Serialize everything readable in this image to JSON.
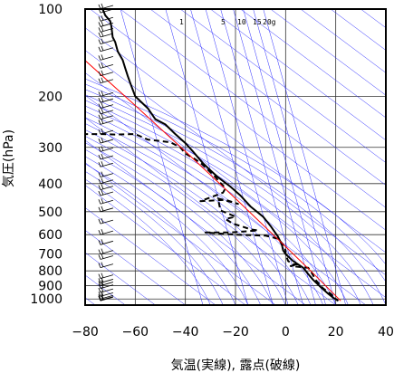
{
  "chart_data": {
    "type": "line",
    "title": "",
    "xlabel": "気温(実線), 露点(破線)",
    "ylabel": "気圧(hPa)",
    "x_ticks": [
      -80,
      -60,
      -40,
      -20,
      0,
      20,
      40
    ],
    "y_ticks": [
      100,
      200,
      300,
      400,
      500,
      600,
      700,
      800,
      900,
      1000
    ],
    "xlim": [
      -80,
      40
    ],
    "ylim": [
      1050,
      100
    ],
    "y_scale": "log",
    "mixing_ratio_labels": [
      "1",
      "5",
      "10",
      "15",
      "20g"
    ],
    "series": [
      {
        "style": "solid",
        "color": "#000000",
        "points": [
          [
            -73,
            100
          ],
          [
            -72,
            105
          ],
          [
            -70,
            110
          ],
          [
            -69.5,
            115
          ],
          [
            -69,
            125
          ],
          [
            -68,
            130
          ],
          [
            -67,
            140
          ],
          [
            -65,
            150
          ],
          [
            -64,
            160
          ],
          [
            -63,
            170
          ],
          [
            -62,
            180
          ],
          [
            -60,
            200
          ],
          [
            -55,
            220
          ],
          [
            -52,
            240
          ],
          [
            -48,
            250
          ],
          [
            -44,
            270
          ],
          [
            -40,
            290
          ],
          [
            -37,
            310
          ],
          [
            -33,
            340
          ],
          [
            -30,
            360
          ],
          [
            -27,
            380
          ],
          [
            -22,
            410
          ],
          [
            -18,
            440
          ],
          [
            -14,
            480
          ],
          [
            -9,
            520
          ],
          [
            -6,
            560
          ],
          [
            -3,
            610
          ],
          [
            -1.5,
            650
          ],
          [
            -1,
            680
          ],
          [
            0,
            700
          ],
          [
            3,
            740
          ],
          [
            7,
            780
          ],
          [
            9,
            820
          ],
          [
            11,
            860
          ],
          [
            14,
            910
          ],
          [
            17,
            960
          ],
          [
            19,
            990
          ],
          [
            21,
            1015
          ]
        ]
      },
      {
        "style": "dashed",
        "color": "#000000",
        "points": [
          [
            -81,
            270
          ],
          [
            -73,
            270
          ],
          [
            -68,
            271
          ],
          [
            -60,
            270
          ],
          [
            -55,
            282
          ],
          [
            -46,
            288
          ],
          [
            -42,
            300
          ],
          [
            -40,
            315
          ],
          [
            -36,
            330
          ],
          [
            -33,
            345
          ],
          [
            -28,
            380
          ],
          [
            -26,
            398
          ],
          [
            -24,
            415
          ],
          [
            -25,
            430
          ],
          [
            -34,
            460
          ],
          [
            -24,
            455
          ],
          [
            -19,
            470
          ],
          [
            -27,
            450
          ],
          [
            -26,
            495
          ],
          [
            -20,
            520
          ],
          [
            -24,
            530
          ],
          [
            -21,
            550
          ],
          [
            -18,
            560
          ],
          [
            -14,
            575
          ],
          [
            -11,
            580
          ],
          [
            -22,
            590
          ],
          [
            -32,
            590
          ],
          [
            -20,
            600
          ],
          [
            -8,
            605
          ],
          [
            -3,
            620
          ],
          [
            -1,
            650
          ],
          [
            0,
            680
          ],
          [
            0,
            700
          ],
          [
            1,
            740
          ],
          [
            3,
            760
          ],
          [
            5,
            760
          ],
          [
            2,
            770
          ],
          [
            9,
            780
          ],
          [
            10,
            800
          ],
          [
            12,
            860
          ],
          [
            15,
            920
          ],
          [
            18,
            960
          ],
          [
            20,
            1000
          ],
          [
            21,
            1015
          ]
        ]
      },
      {
        "style": "solid",
        "color": "#ff0000",
        "points": [
          [
            -84,
            140
          ],
          [
            -60,
            215
          ],
          [
            -40,
            310
          ],
          [
            -20,
            450
          ],
          [
            0,
            660
          ],
          [
            10,
            800
          ],
          [
            22,
            1015
          ]
        ]
      }
    ],
    "wind_barbs_x": -71,
    "wind_barb_pressures": [
      100,
      103,
      110,
      115,
      120,
      125,
      132,
      140,
      150,
      160,
      170,
      180,
      200,
      210,
      220,
      230,
      240,
      250,
      270,
      290,
      310,
      330,
      350,
      380,
      400,
      420,
      440,
      470,
      500,
      550,
      600,
      650,
      700,
      730,
      780,
      850,
      880,
      900,
      920,
      950,
      980,
      1000,
      1010,
      1015
    ],
    "grid": true,
    "legend": "none"
  }
}
